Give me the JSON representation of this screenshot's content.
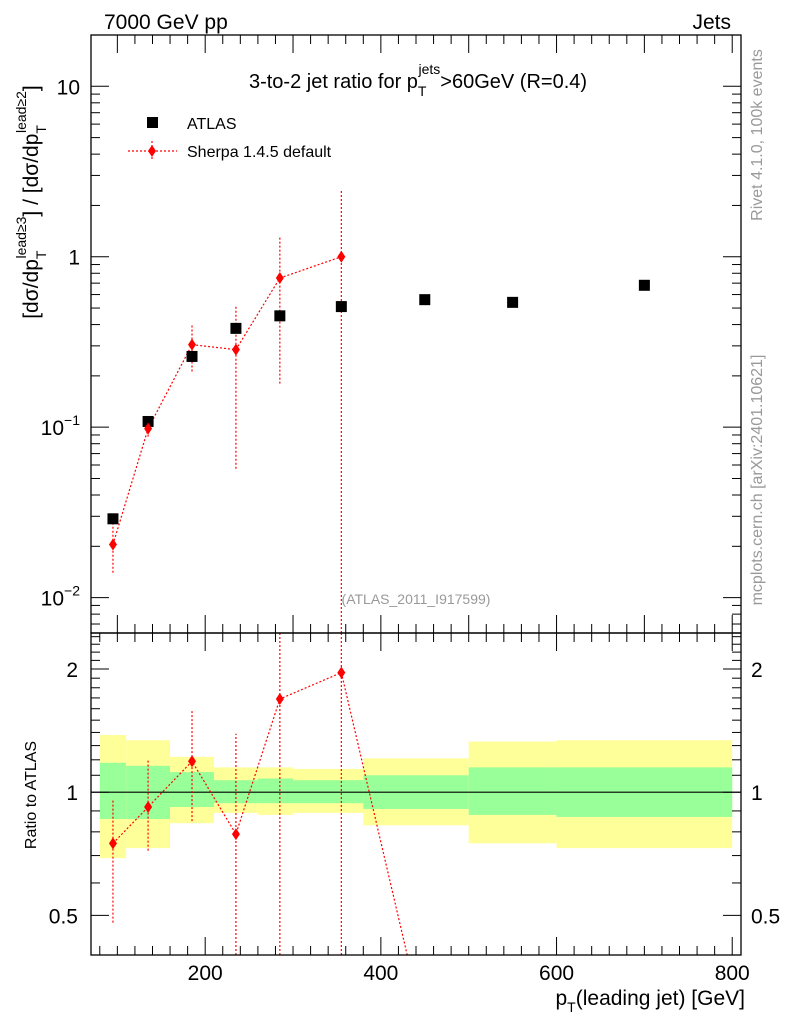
{
  "header": {
    "energy": "7000 GeV pp",
    "process": "Jets"
  },
  "side_labels": {
    "rivet": "Rivet 4.1.0,  100k events",
    "source": "mcplots.cern.ch [arXiv:2401.10621]"
  },
  "chart_data": [
    {
      "type": "scatter",
      "panel": "main",
      "title": "3-to-2 jet ratio for p_T^jets >60GeV (R=0.4)",
      "title_parts": {
        "main": "3-to-2 jet ratio for p",
        "sub": "T",
        "sup": "jets",
        "rest": ">60GeV (R=0.4)"
      },
      "ylabel": "[dσ/dp_T^lead≥3] / [dσ/dp_T^lead≥2]",
      "ylabel_parts": {
        "a": "[dσ/dp",
        "sub": "T",
        "sup1": "lead≥3",
        "b": "] / [dσ/dp",
        "sup2": "lead≥2",
        "c": "]"
      },
      "yscale": "log",
      "ylim": [
        0.0062,
        20
      ],
      "xlim": [
        70,
        810
      ],
      "yticks": [
        {
          "value": 0.01,
          "base": "10",
          "exp": "−2"
        },
        {
          "value": 0.1,
          "base": "10",
          "exp": "−1"
        },
        {
          "value": 1,
          "base": "1",
          "exp": ""
        },
        {
          "value": 10,
          "base": "10",
          "exp": ""
        }
      ],
      "legend_position": "top-left",
      "series": [
        {
          "name": "ATLAS",
          "marker": "square",
          "color": "#000000",
          "x": [
            95,
            135,
            185,
            235,
            285,
            355,
            450,
            550,
            700
          ],
          "y": [
            0.029,
            0.108,
            0.26,
            0.38,
            0.45,
            0.51,
            0.56,
            0.54,
            0.68
          ]
        },
        {
          "name": "Sherpa 1.4.5 default",
          "marker": "diamond",
          "line": "dotted",
          "color": "#ff0000",
          "x": [
            95,
            135,
            185,
            235,
            285,
            355
          ],
          "y": [
            0.0205,
            0.098,
            0.305,
            0.285,
            0.75,
            1.0
          ],
          "y_low": [
            0.014,
            0.088,
            0.212,
            0.057,
            0.18,
            0.0005
          ],
          "y_high": [
            0.031,
            0.115,
            0.4,
            0.52,
            1.33,
            2.45
          ]
        }
      ],
      "watermark": "(ATLAS_2011_I917599)"
    },
    {
      "type": "scatter",
      "panel": "ratio",
      "ylabel": "Ratio to ATLAS",
      "xlabel": "p_T(leading jet) [GeV]",
      "xlabel_parts": {
        "main": "p",
        "sub": "T",
        "rest": "(leading jet) [GeV]"
      },
      "yscale": "log",
      "ylim": [
        0.4,
        2.45
      ],
      "xlim": [
        70,
        810
      ],
      "xticks": [
        200,
        400,
        600,
        800
      ],
      "yticks": [
        0.5,
        1,
        2
      ],
      "ytick_labels": [
        "0.5",
        "1",
        "2"
      ],
      "bands": {
        "edges": [
          80,
          110,
          160,
          210,
          260,
          300,
          380,
          500,
          600,
          800
        ],
        "green_low": [
          0.86,
          0.86,
          0.92,
          0.94,
          0.94,
          0.94,
          0.91,
          0.88,
          0.87
        ],
        "green_high": [
          1.18,
          1.16,
          1.12,
          1.07,
          1.08,
          1.07,
          1.1,
          1.15,
          1.15
        ],
        "yellow_low": [
          0.69,
          0.73,
          0.84,
          0.89,
          0.88,
          0.89,
          0.83,
          0.75,
          0.73
        ],
        "yellow_high": [
          1.38,
          1.34,
          1.22,
          1.15,
          1.15,
          1.14,
          1.21,
          1.33,
          1.34
        ],
        "green_color": "#99ff99",
        "yellow_color": "#ffff99"
      },
      "series": [
        {
          "name": "Sherpa 1.4.5 default",
          "marker": "diamond",
          "line": "dotted",
          "color": "#ff0000",
          "x": [
            95,
            135,
            185,
            235,
            285,
            355
          ],
          "y": [
            0.75,
            0.92,
            1.19,
            0.79,
            1.69,
            1.96
          ],
          "y_low": [
            0.48,
            0.72,
            0.85,
            0.3,
            0.3,
            0.3
          ],
          "y_high": [
            0.96,
            1.2,
            1.58,
            1.39,
            2.5,
            2.5
          ],
          "trend_to": {
            "x": 430,
            "y": 0.38
          }
        }
      ]
    }
  ]
}
